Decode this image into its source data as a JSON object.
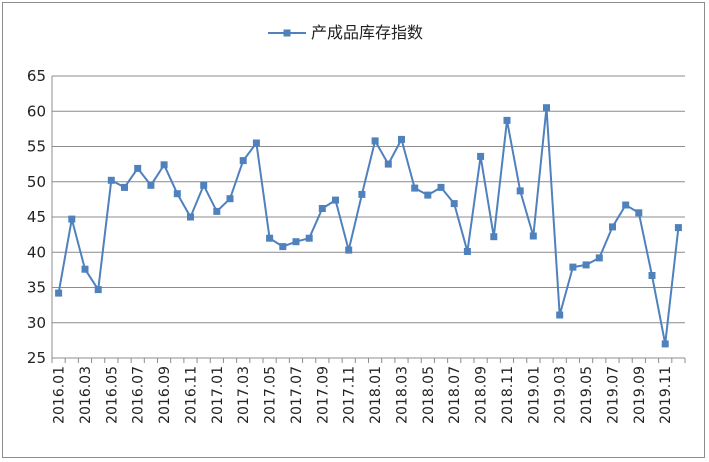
{
  "chart_data": {
    "type": "line",
    "title": "",
    "xlabel": "",
    "ylabel": "",
    "legend": {
      "placement": "top-center",
      "entries": [
        "产成品库存指数"
      ]
    },
    "grid": {
      "y": true,
      "x": false
    },
    "ylim": [
      25,
      65
    ],
    "yticks": [
      25,
      30,
      35,
      40,
      45,
      50,
      55,
      60,
      65
    ],
    "ytick_labels": [
      "25",
      "30",
      "35",
      "40",
      "45",
      "50",
      "55",
      "60",
      "65"
    ],
    "xtick_labels": [
      "2016.01",
      "2016.03",
      "2016.05",
      "2016.07",
      "2016.09",
      "2016.11",
      "2017.01",
      "2017.03",
      "2017.05",
      "2017.07",
      "2017.09",
      "2017.11",
      "2018.01",
      "2018.03",
      "2018.05",
      "2018.07",
      "2018.09",
      "2018.11",
      "2019.01",
      "2019.03",
      "2019.05",
      "2019.07",
      "2019.09",
      "2019.11"
    ],
    "x": [
      "2016.01",
      "2016.02",
      "2016.03",
      "2016.04",
      "2016.05",
      "2016.06",
      "2016.07",
      "2016.08",
      "2016.09",
      "2016.10",
      "2016.11",
      "2016.12",
      "2017.01",
      "2017.02",
      "2017.03",
      "2017.04",
      "2017.05",
      "2017.06",
      "2017.07",
      "2017.08",
      "2017.09",
      "2017.10",
      "2017.11",
      "2017.12",
      "2018.01",
      "2018.02",
      "2018.03",
      "2018.04",
      "2018.05",
      "2018.06",
      "2018.07",
      "2018.08",
      "2018.09",
      "2018.10",
      "2018.11",
      "2018.12",
      "2019.01",
      "2019.02",
      "2019.03",
      "2019.04",
      "2019.05",
      "2019.06",
      "2019.07",
      "2019.08",
      "2019.09",
      "2019.10",
      "2019.11",
      "2019.12"
    ],
    "series": [
      {
        "name": "产成品库存指数",
        "color": "#4F81BD",
        "marker": "square",
        "values": [
          34.2,
          44.7,
          37.6,
          34.7,
          50.2,
          49.2,
          51.9,
          49.5,
          52.4,
          48.3,
          45.0,
          49.5,
          45.8,
          47.6,
          53.0,
          55.5,
          42.0,
          40.8,
          41.5,
          42.0,
          46.2,
          47.4,
          40.3,
          48.2,
          55.8,
          52.5,
          56.0,
          49.1,
          48.1,
          49.2,
          46.9,
          40.1,
          53.6,
          42.2,
          58.7,
          48.7,
          42.3,
          60.5,
          31.1,
          37.9,
          38.2,
          39.2,
          43.6,
          46.7,
          45.6,
          36.7,
          27.0,
          43.5
        ]
      }
    ]
  }
}
